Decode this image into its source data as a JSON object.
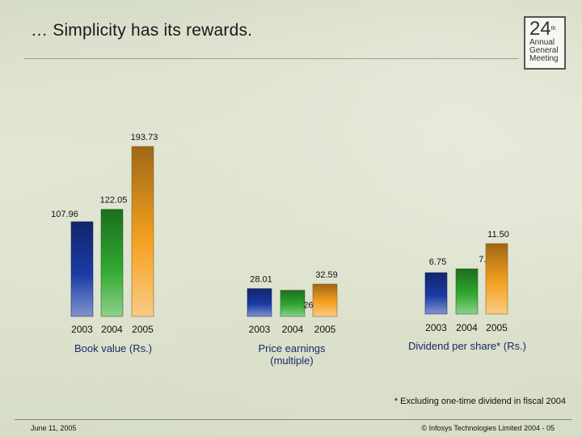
{
  "slide": {
    "title": "… Simplicity has its rewards.",
    "footnote": "* Excluding one-time dividend in fiscal 2004",
    "footer_left": "June 11, 2005",
    "footer_right": "© Infosys Technologies Limited 2004 - 05"
  },
  "logo": {
    "number": "24",
    "suffix": "th",
    "lines": [
      "Annual",
      "General",
      "Meeting"
    ]
  },
  "colors": {
    "bar_2003": "#1a3aa6",
    "bar_2004": "#2ea82e",
    "bar_2005": "#f5a020"
  },
  "chart_data": [
    {
      "type": "bar",
      "label": "Book value (Rs.)",
      "categories": [
        "2003",
        "2004",
        "2005"
      ],
      "values": [
        107.96,
        122.05,
        193.73
      ],
      "value_labels": [
        "107.96",
        "122.05",
        "193.73"
      ]
    },
    {
      "type": "bar",
      "label": "Price earnings (multiple)",
      "categories": [
        "2003",
        "2004",
        "2005"
      ],
      "values": [
        28.01,
        26.35,
        32.59
      ],
      "value_labels": [
        "28.01",
        "26.35",
        "32.59"
      ]
    },
    {
      "type": "bar",
      "label": "Dividend per share* (Rs.)",
      "categories": [
        "2003",
        "2004",
        "2005"
      ],
      "values": [
        6.75,
        7.38,
        11.5
      ],
      "value_labels": [
        "6.75",
        "7.38",
        "11.50"
      ]
    }
  ]
}
